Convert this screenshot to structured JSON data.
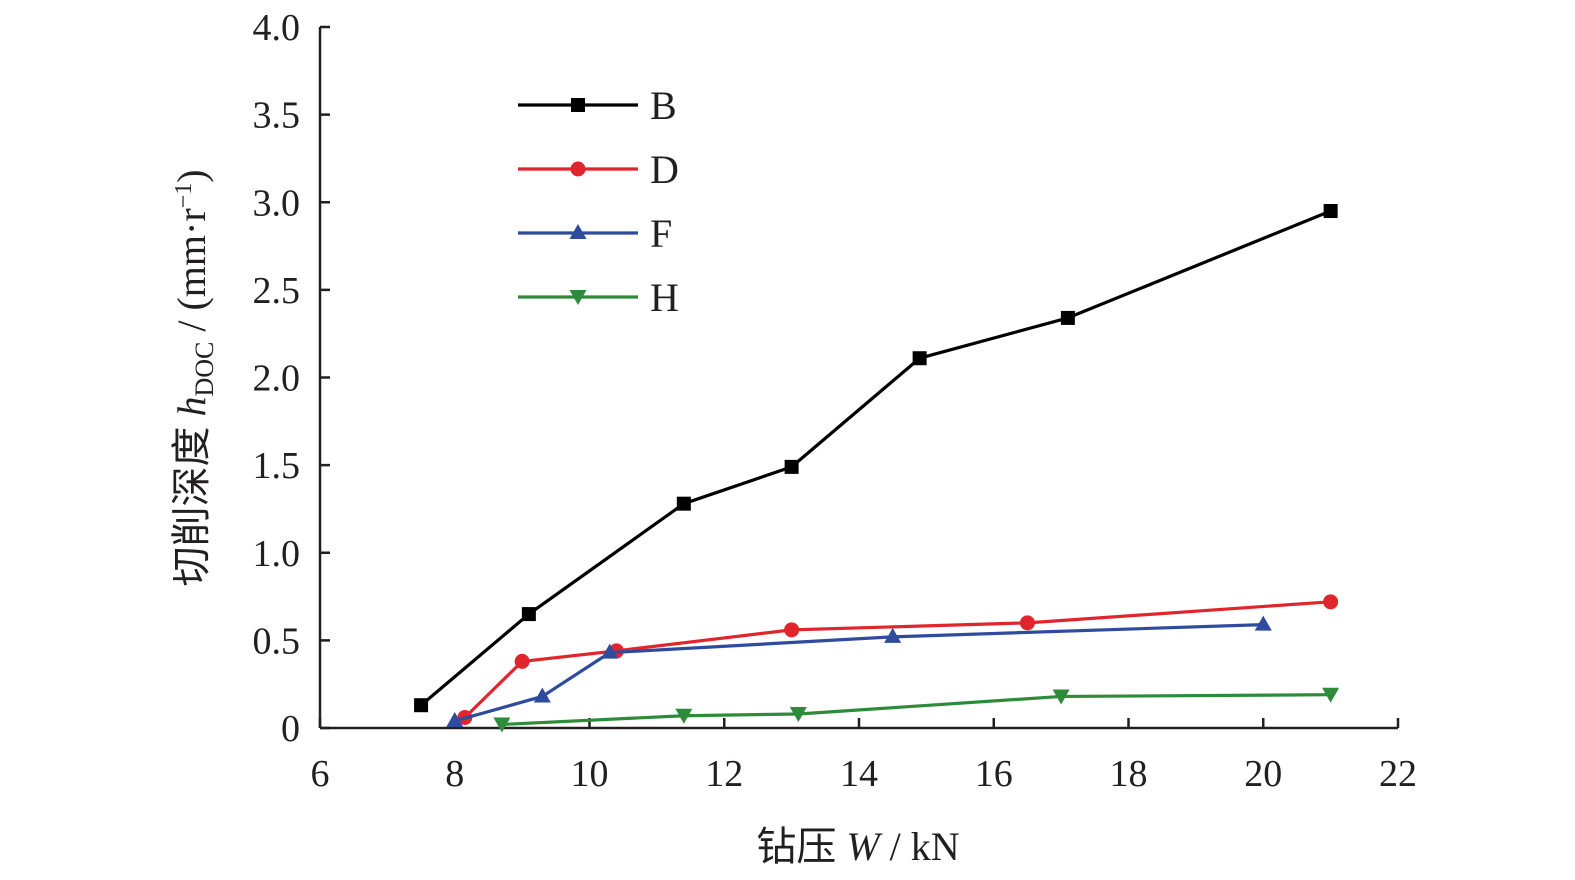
{
  "chart_data": {
    "type": "line",
    "xlabel": {
      "prefix": "钻压 ",
      "var": "W",
      "unit": " / kN"
    },
    "ylabel": {
      "prefix": "切削深度 ",
      "var": "h",
      "sub": "DOC",
      "unit_open": " / (mm·r",
      "unit_sup": "−1",
      "unit_close": ")"
    },
    "xlim": [
      6,
      22
    ],
    "ylim": [
      0,
      4.0
    ],
    "xticks": [
      6,
      8,
      10,
      12,
      14,
      16,
      18,
      20,
      22
    ],
    "xtick_labels": [
      "6",
      "8",
      "10",
      "12",
      "14",
      "16",
      "18",
      "20",
      "22"
    ],
    "yticks": [
      0,
      0.5,
      1.0,
      1.5,
      2.0,
      2.5,
      3.0,
      3.5,
      4.0
    ],
    "ytick_labels": [
      "0",
      "0.5",
      "1.0",
      "1.5",
      "2.0",
      "2.5",
      "3.0",
      "3.5",
      "4.0"
    ],
    "grid": false,
    "legend_position": "top-left",
    "series": [
      {
        "name": "B",
        "color": "#000000",
        "marker": "square",
        "x": [
          7.5,
          9.1,
          11.4,
          13.0,
          14.9,
          17.1,
          21.0
        ],
        "y": [
          0.13,
          0.65,
          1.28,
          1.49,
          2.11,
          2.34,
          2.95
        ]
      },
      {
        "name": "D",
        "color": "#e0262c",
        "marker": "circle",
        "x": [
          8.15,
          9.0,
          10.4,
          13.0,
          16.5,
          21.0
        ],
        "y": [
          0.06,
          0.38,
          0.44,
          0.56,
          0.6,
          0.72
        ]
      },
      {
        "name": "F",
        "color": "#2e4b9d",
        "marker": "triangle-up",
        "x": [
          8.0,
          9.3,
          10.3,
          14.5,
          20.0
        ],
        "y": [
          0.04,
          0.18,
          0.43,
          0.52,
          0.59
        ]
      },
      {
        "name": "H",
        "color": "#2e8b3a",
        "marker": "triangle-down",
        "x": [
          8.7,
          11.4,
          13.1,
          17.0,
          21.0
        ],
        "y": [
          0.02,
          0.07,
          0.08,
          0.18,
          0.19
        ]
      }
    ]
  }
}
